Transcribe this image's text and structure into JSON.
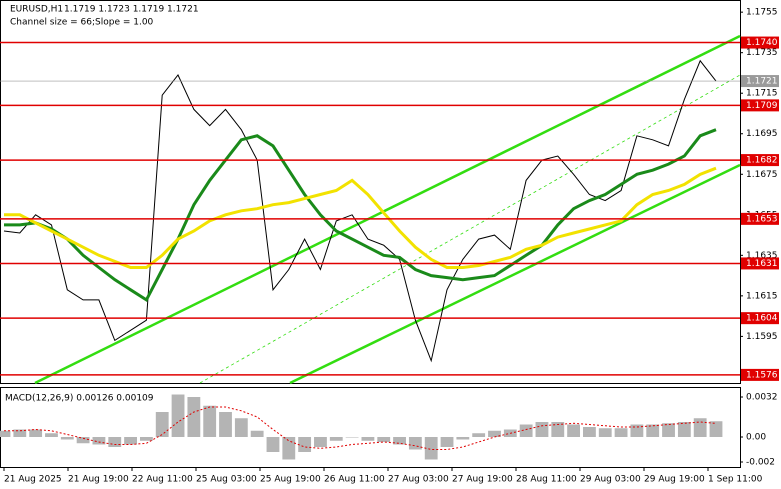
{
  "chart_data": [
    {
      "type": "line",
      "title": "EURUSD,H1",
      "subtitle": "1.1719 1.1723 1.1719 1.1721",
      "annotation": "Channel size = 66;Slope = 1.00",
      "x_labels": [
        "21 Aug 2025",
        "21 Aug 19:00",
        "22 Aug 11:00",
        "25 Aug 03:00",
        "25 Aug 19:00",
        "26 Aug 11:00",
        "27 Aug 03:00",
        "27 Aug 19:00",
        "28 Aug 11:00",
        "29 Aug 03:00",
        "29 Aug 19:00",
        "1 Sep 11:00"
      ],
      "ylim": [
        1.1572,
        1.1761
      ],
      "yticks": [
        1.1755,
        1.1735,
        1.1715,
        1.1695,
        1.1675,
        1.1655,
        1.1635,
        1.1615,
        1.1595
      ],
      "levels": [
        {
          "value": 1.174,
          "label": "1.1740"
        },
        {
          "value": 1.1709,
          "label": "1.1709"
        },
        {
          "value": 1.1682,
          "label": "1.1682"
        },
        {
          "value": 1.1653,
          "label": "1.1653"
        },
        {
          "value": 1.1631,
          "label": "1.1631"
        },
        {
          "value": 1.1604,
          "label": "1.1604"
        },
        {
          "value": 1.1576,
          "label": "1.1576"
        }
      ],
      "level_color": "#e00000",
      "current_price": 1.1721,
      "series": [
        {
          "color": "#000000",
          "values": [
            1.1647,
            1.1646,
            1.1655,
            1.165,
            1.1618,
            1.1613,
            1.1613,
            1.1593,
            1.1598,
            1.1603,
            1.1714,
            1.1724,
            1.1707,
            1.1699,
            1.1707,
            1.1697,
            1.1682,
            1.1618,
            1.1628,
            1.1643,
            1.1628,
            1.1652,
            1.1655,
            1.1643,
            1.164,
            1.1633,
            1.1603,
            1.1583,
            1.1618,
            1.1633,
            1.1643,
            1.1645,
            1.1638,
            1.1672,
            1.1682,
            1.1684,
            1.1675,
            1.1665,
            1.1662,
            1.1667,
            1.1694,
            1.1692,
            1.1689,
            1.1712,
            1.1731,
            1.1721
          ]
        },
        {
          "color": "#1a8a1a",
          "values": [
            1.165,
            1.165,
            1.1651,
            1.1648,
            1.1643,
            1.1635,
            1.1629,
            1.1623,
            1.1618,
            1.1613,
            1.1628,
            1.1643,
            1.166,
            1.1672,
            1.1682,
            1.1692,
            1.1694,
            1.1689,
            1.1677,
            1.1665,
            1.1655,
            1.1647,
            1.1643,
            1.1639,
            1.1635,
            1.1634,
            1.1628,
            1.1625,
            1.1624,
            1.1623,
            1.1624,
            1.1625,
            1.163,
            1.1635,
            1.164,
            1.165,
            1.1658,
            1.1662,
            1.1665,
            1.167,
            1.1675,
            1.1677,
            1.168,
            1.1684,
            1.1694,
            1.1697
          ]
        },
        {
          "color": "#f2e200",
          "values": [
            1.1655,
            1.1655,
            1.1651,
            1.1647,
            1.1643,
            1.1639,
            1.1635,
            1.1632,
            1.1629,
            1.1629,
            1.1635,
            1.1643,
            1.1647,
            1.1652,
            1.1655,
            1.1657,
            1.1658,
            1.166,
            1.1661,
            1.1663,
            1.1665,
            1.1667,
            1.1672,
            1.1665,
            1.1656,
            1.1647,
            1.1639,
            1.1633,
            1.1629,
            1.1629,
            1.163,
            1.1632,
            1.1634,
            1.1638,
            1.164,
            1.1644,
            1.1646,
            1.1648,
            1.165,
            1.1652,
            1.166,
            1.1665,
            1.1667,
            1.167,
            1.1675,
            1.1678
          ]
        }
      ]
    },
    {
      "type": "macd",
      "title": "MACD(12,26,9) 0.00126 0.00109",
      "ylim": [
        -0.0024,
        0.00392
      ],
      "yticks": [
        0.0032,
        {
          "value": 0,
          "label": "0.00"
        },
        -0.002
      ],
      "series": [
        {
          "color": "#b4b4b4",
          "values": [
            0.0005,
            0.0006,
            0.0006,
            0.0003,
            -0.0002,
            -0.0005,
            -0.0006,
            -0.0008,
            -0.0006,
            -0.0003,
            0.002,
            0.0034,
            0.0032,
            0.0025,
            0.002,
            0.0015,
            0.0005,
            -0.0012,
            -0.0018,
            -0.0012,
            -0.0008,
            -0.0003,
            0,
            -0.0003,
            -0.0004,
            -0.0006,
            -0.001,
            -0.0018,
            -0.0008,
            -0.0002,
            0.0003,
            0.0005,
            0.0006,
            0.001,
            0.0012,
            0.0012,
            0.001,
            0.0008,
            0.0007,
            0.0007,
            0.001,
            0.001,
            0.0011,
            0.0012,
            0.0015,
            0.00126
          ]
        },
        {
          "color": "#e00000",
          "values": [
            0.0005,
            0.0005,
            0.0006,
            0.0005,
            0.0002,
            -0.0001,
            -0.0004,
            -0.0006,
            -0.0006,
            -0.0005,
            0.0002,
            0.0012,
            0.002,
            0.0024,
            0.0024,
            0.0021,
            0.0016,
            0.0006,
            -0.0003,
            -0.0008,
            -0.0009,
            -0.0008,
            -0.0006,
            -0.0005,
            -0.0004,
            -0.0005,
            -0.0007,
            -0.001,
            -0.001,
            -0.0008,
            -0.0004,
            0,
            0.0003,
            0.0006,
            0.0009,
            0.001,
            0.0011,
            0.001,
            0.0009,
            0.0008,
            0.0008,
            0.0009,
            0.001,
            0.0011,
            0.0012,
            0.00109
          ]
        }
      ]
    }
  ]
}
